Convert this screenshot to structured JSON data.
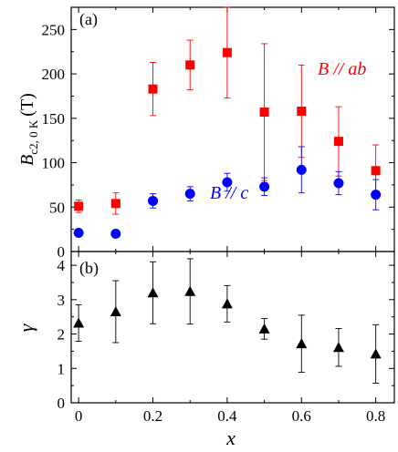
{
  "chart_data": [
    {
      "panel": "(a)",
      "type": "scatter",
      "xlabel": "x",
      "ylabel_main": "B",
      "ylabel_sub": "c2, 0 K",
      "ylabel_unit": "(T)",
      "xlim": [
        -0.02,
        0.85
      ],
      "ylim": [
        0,
        275
      ],
      "yticks": [
        0,
        50,
        100,
        150,
        200,
        250
      ],
      "xticks": [
        0,
        0.2,
        0.4,
        0.6,
        0.8
      ],
      "grid": false,
      "series": [
        {
          "name": "B // ab",
          "color": "#ff0000",
          "marker": "square",
          "x": [
            0,
            0.1,
            0.2,
            0.3,
            0.4,
            0.5,
            0.6,
            0.7,
            0.8
          ],
          "y": [
            51,
            54,
            183,
            210,
            224,
            157,
            158,
            124,
            91
          ],
          "err": [
            7,
            12,
            30,
            28,
            51,
            77,
            52,
            39,
            29
          ]
        },
        {
          "name": "B // c",
          "color": "#0000ff",
          "marker": "circle",
          "x": [
            0,
            0.1,
            0.2,
            0.3,
            0.4,
            0.5,
            0.6,
            0.7,
            0.8
          ],
          "y": [
            21,
            20,
            57,
            65,
            78,
            73,
            92,
            77,
            64
          ],
          "err": [
            0,
            0,
            8,
            8,
            10,
            10,
            26,
            13,
            17
          ]
        }
      ]
    },
    {
      "panel": "(b)",
      "type": "scatter",
      "xlabel": "x",
      "ylabel": "γ",
      "xlim": [
        -0.02,
        0.85
      ],
      "ylim": [
        0,
        4.4
      ],
      "yticks": [
        0,
        1,
        2,
        3,
        4
      ],
      "xticks": [
        0,
        0.2,
        0.4,
        0.6,
        0.8
      ],
      "xticklabels": [
        "0",
        "0.2",
        "0.4",
        "0.6",
        "0.8"
      ],
      "grid": false,
      "series": [
        {
          "color": "#000000",
          "marker": "triangle",
          "x": [
            0,
            0.1,
            0.2,
            0.3,
            0.4,
            0.5,
            0.6,
            0.7,
            0.8
          ],
          "y": [
            2.32,
            2.65,
            3.2,
            3.24,
            2.88,
            2.15,
            1.72,
            1.61,
            1.42
          ],
          "err": [
            0.53,
            0.9,
            0.9,
            0.95,
            0.53,
            0.3,
            0.83,
            0.55,
            0.85
          ]
        }
      ]
    }
  ]
}
